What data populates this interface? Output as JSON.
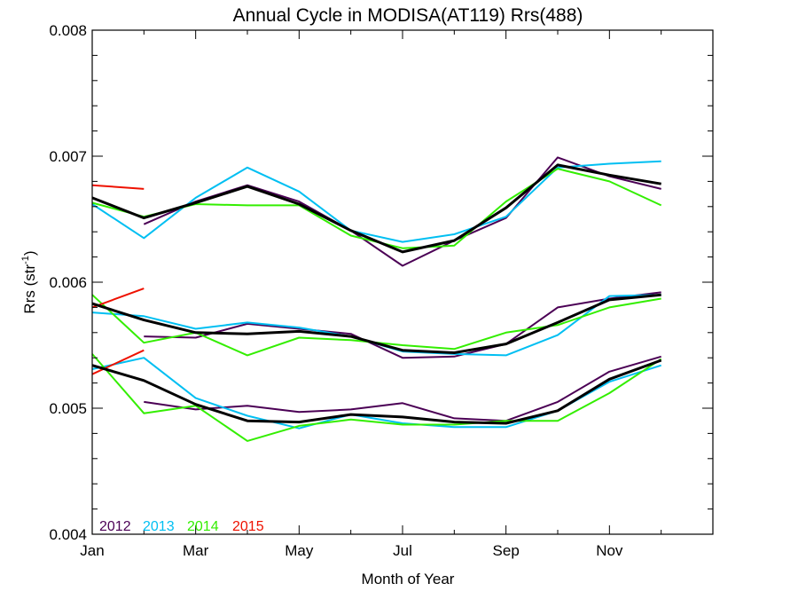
{
  "chart_data": {
    "type": "line",
    "title": "Annual Cycle in MODISA(AT119) Rrs(488)",
    "xlabel": "Month of Year",
    "ylabel": "Rrs (str",
    "ylabel_superscript": "-1",
    "ylabel_suffix": ")",
    "xlim": [
      1,
      13
    ],
    "ylim": [
      0.004,
      0.008
    ],
    "x_ticks": [
      {
        "value": 1,
        "label": "Jan"
      },
      {
        "value": 3,
        "label": "Mar"
      },
      {
        "value": 5,
        "label": "May"
      },
      {
        "value": 7,
        "label": "Jul"
      },
      {
        "value": 9,
        "label": "Sep"
      },
      {
        "value": 11,
        "label": "Nov"
      }
    ],
    "y_ticks": [
      {
        "value": 0.004,
        "label": "0.004"
      },
      {
        "value": 0.005,
        "label": "0.005"
      },
      {
        "value": 0.006,
        "label": "0.006"
      },
      {
        "value": 0.007,
        "label": "0.007"
      },
      {
        "value": 0.008,
        "label": "0.008"
      }
    ],
    "legend": {
      "placement": "bottom-left",
      "entries": [
        {
          "name": "2012",
          "color": "#4b0055"
        },
        {
          "name": "2013",
          "color": "#00bff2"
        },
        {
          "name": "2014",
          "color": "#33ee00"
        },
        {
          "name": "2015",
          "color": "#ee1100"
        }
      ]
    },
    "grid": false,
    "series": [
      {
        "name": "2012",
        "color": "#4b0055",
        "group": "upper",
        "x": [
          2,
          3,
          4,
          5,
          6,
          7,
          8,
          9,
          10,
          11,
          12
        ],
        "values": [
          0.00646,
          0.00664,
          0.00677,
          0.00664,
          0.00641,
          0.00613,
          0.00633,
          0.00651,
          0.00699,
          0.00684,
          0.00674
        ]
      },
      {
        "name": "2013",
        "color": "#00bff2",
        "group": "upper",
        "x": [
          1,
          2,
          3,
          4,
          5,
          6,
          7,
          8,
          9,
          10,
          11,
          12
        ],
        "values": [
          0.00662,
          0.00635,
          0.00667,
          0.00691,
          0.00672,
          0.00641,
          0.00632,
          0.00638,
          0.00652,
          0.00691,
          0.00694,
          0.00696
        ]
      },
      {
        "name": "2014",
        "color": "#33ee00",
        "group": "upper",
        "x": [
          1,
          2,
          3,
          4,
          5,
          6,
          7,
          8,
          9,
          10,
          11,
          12
        ],
        "values": [
          0.00663,
          0.00652,
          0.00662,
          0.00661,
          0.00661,
          0.00637,
          0.00627,
          0.00629,
          0.00664,
          0.0069,
          0.0068,
          0.00661
        ]
      },
      {
        "name": "2015",
        "color": "#ee1100",
        "group": "upper",
        "x": [
          1,
          2
        ],
        "values": [
          0.00677,
          0.00674
        ]
      },
      {
        "name": "mean",
        "color": "#000000",
        "group": "upper",
        "width": 3,
        "x": [
          1,
          2,
          3,
          4,
          5,
          6,
          7,
          8,
          9,
          10,
          11,
          12
        ],
        "values": [
          0.00667,
          0.00651,
          0.00663,
          0.00676,
          0.00662,
          0.00641,
          0.00624,
          0.00633,
          0.00659,
          0.00693,
          0.00685,
          0.00678
        ]
      },
      {
        "name": "2012",
        "color": "#4b0055",
        "group": "middle",
        "x": [
          2,
          3,
          4,
          5,
          6,
          7,
          8,
          9,
          10,
          11,
          12
        ],
        "values": [
          0.00557,
          0.00556,
          0.00567,
          0.00563,
          0.00559,
          0.0054,
          0.00541,
          0.00551,
          0.0058,
          0.00587,
          0.00592
        ]
      },
      {
        "name": "2013",
        "color": "#00bff2",
        "group": "middle",
        "x": [
          1,
          2,
          3,
          4,
          5,
          6,
          7,
          8,
          9,
          10,
          11,
          12
        ],
        "values": [
          0.00576,
          0.00573,
          0.00563,
          0.00568,
          0.00564,
          0.00557,
          0.00545,
          0.00543,
          0.00542,
          0.00558,
          0.00589,
          0.0059
        ]
      },
      {
        "name": "2014",
        "color": "#33ee00",
        "group": "middle",
        "x": [
          1,
          2,
          3,
          4,
          5,
          6,
          7,
          8,
          9,
          10,
          11,
          12
        ],
        "values": [
          0.0059,
          0.00552,
          0.0056,
          0.00542,
          0.00556,
          0.00554,
          0.0055,
          0.00547,
          0.0056,
          0.00566,
          0.0058,
          0.00587
        ]
      },
      {
        "name": "2015",
        "color": "#ee1100",
        "group": "middle",
        "x": [
          1,
          2
        ],
        "values": [
          0.0058,
          0.00595
        ]
      },
      {
        "name": "mean",
        "color": "#000000",
        "group": "middle",
        "width": 3,
        "x": [
          1,
          2,
          3,
          4,
          5,
          6,
          7,
          8,
          9,
          10,
          11,
          12
        ],
        "values": [
          0.00583,
          0.0057,
          0.0056,
          0.00559,
          0.00561,
          0.00557,
          0.00546,
          0.00544,
          0.00551,
          0.00568,
          0.00586,
          0.0059
        ]
      },
      {
        "name": "2012",
        "color": "#4b0055",
        "group": "lower",
        "x": [
          2,
          3,
          4,
          5,
          6,
          7,
          8,
          9,
          10,
          11,
          12
        ],
        "values": [
          0.00505,
          0.00499,
          0.00502,
          0.00497,
          0.00499,
          0.00504,
          0.00492,
          0.0049,
          0.00505,
          0.00529,
          0.00541
        ]
      },
      {
        "name": "2013",
        "color": "#00bff2",
        "group": "lower",
        "x": [
          1,
          2,
          3,
          4,
          5,
          6,
          7,
          8,
          9,
          10,
          11,
          12
        ],
        "values": [
          0.00531,
          0.0054,
          0.00508,
          0.00494,
          0.00484,
          0.00495,
          0.00488,
          0.00485,
          0.00485,
          0.00498,
          0.00521,
          0.00534
        ]
      },
      {
        "name": "2014",
        "color": "#33ee00",
        "group": "lower",
        "x": [
          1,
          2,
          3,
          4,
          5,
          6,
          7,
          8,
          9,
          10,
          11,
          12
        ],
        "values": [
          0.00543,
          0.00496,
          0.00502,
          0.00474,
          0.00486,
          0.00491,
          0.00487,
          0.00487,
          0.0049,
          0.0049,
          0.00512,
          0.00539
        ]
      },
      {
        "name": "2015",
        "color": "#ee1100",
        "group": "lower",
        "x": [
          1,
          2
        ],
        "values": [
          0.00527,
          0.00546
        ]
      },
      {
        "name": "mean",
        "color": "#000000",
        "group": "lower",
        "width": 3,
        "x": [
          1,
          2,
          3,
          4,
          5,
          6,
          7,
          8,
          9,
          10,
          11,
          12
        ],
        "values": [
          0.00534,
          0.00522,
          0.00503,
          0.0049,
          0.00489,
          0.00495,
          0.00493,
          0.00489,
          0.00488,
          0.00498,
          0.00523,
          0.00538
        ]
      }
    ]
  }
}
